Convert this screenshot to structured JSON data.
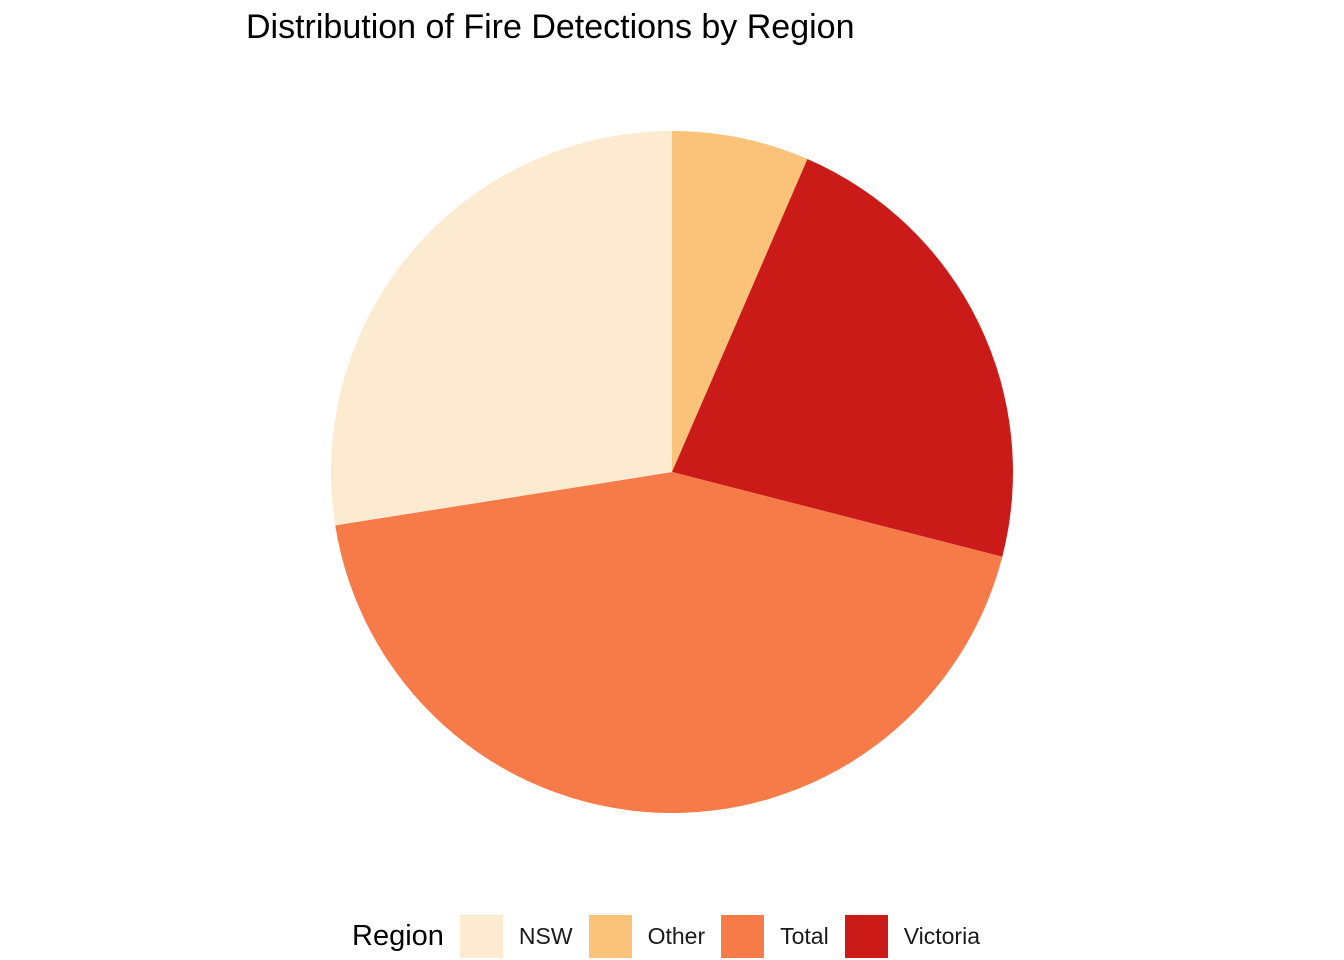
{
  "chart_data": {
    "type": "pie",
    "title": "Distribution of Fire Detections by Region",
    "start": "12 o'clock",
    "direction": "clockwise",
    "slice_order": [
      "Other",
      "Victoria",
      "Total",
      "NSW"
    ],
    "slices": [
      {
        "label": "NSW",
        "value": 27.5,
        "color": "#FCEBD0"
      },
      {
        "label": "Other",
        "value": 6.5,
        "color": "#FBC27A"
      },
      {
        "label": "Total",
        "value": 43.5,
        "color": "#F77A49"
      },
      {
        "label": "Victoria",
        "value": 22.5,
        "color": "#CB1B19"
      }
    ],
    "legend": {
      "title": "Region",
      "position": "bottom",
      "items": [
        "NSW",
        "Other",
        "Total",
        "Victoria"
      ]
    }
  }
}
